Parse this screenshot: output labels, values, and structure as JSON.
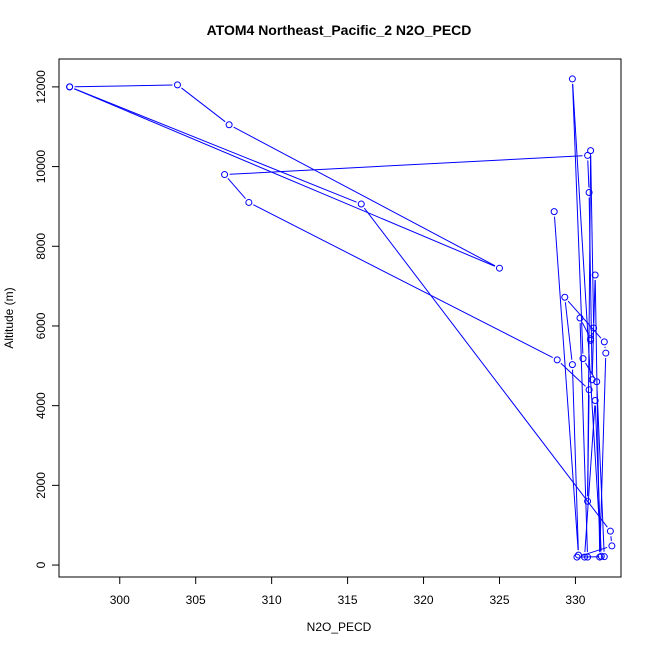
{
  "chart_data": {
    "type": "line",
    "title": "ATOM4 Northeast_Pacific_2 N2O_PECD",
    "xlabel": "N2O_PECD",
    "ylabel": "Altitude (m)",
    "xlim": [
      296,
      333
    ],
    "ylim": [
      -300,
      12700
    ],
    "xticks": [
      300,
      305,
      310,
      315,
      320,
      325,
      330
    ],
    "yticks": [
      0,
      2000,
      4000,
      6000,
      8000,
      10000,
      12000
    ],
    "xtick_labels": [
      "300",
      "305",
      "310",
      "315",
      "320",
      "325",
      "330"
    ],
    "ytick_labels": [
      "0",
      "2000",
      "4000",
      "6000",
      "8000",
      "10000",
      "12000"
    ],
    "series_color": "#0000ff",
    "series": [
      {
        "x": [
          296.7,
          303.8,
          307.2,
          325.0,
          296.7,
          315.9,
          332.3,
          332.4,
          330.1,
          331.9,
          331.4,
          330.5,
          329.8,
          331.7,
          331.3,
          330.6,
          330.8,
          330.3,
          331.0,
          331.0,
          331.2,
          331.0,
          330.8,
          330.9,
          328.8,
          308.5,
          306.9,
          330.8,
          330.9,
          331.1,
          331.3,
          331.6,
          332.0,
          331.9,
          329.3,
          329.8,
          330.2,
          328.6
        ],
        "y": [
          12000,
          12050,
          11050,
          7450,
          12000,
          9060,
          850,
          480,
          200,
          210,
          4600,
          5180,
          12200,
          220,
          4130,
          200,
          200,
          6200,
          5680,
          5640,
          5950,
          10400,
          1600,
          4400,
          5150,
          9100,
          9800,
          10280,
          9350,
          4650,
          7280,
          200,
          5320,
          5600,
          6720,
          5030,
          250,
          8870
        ]
      }
    ]
  }
}
